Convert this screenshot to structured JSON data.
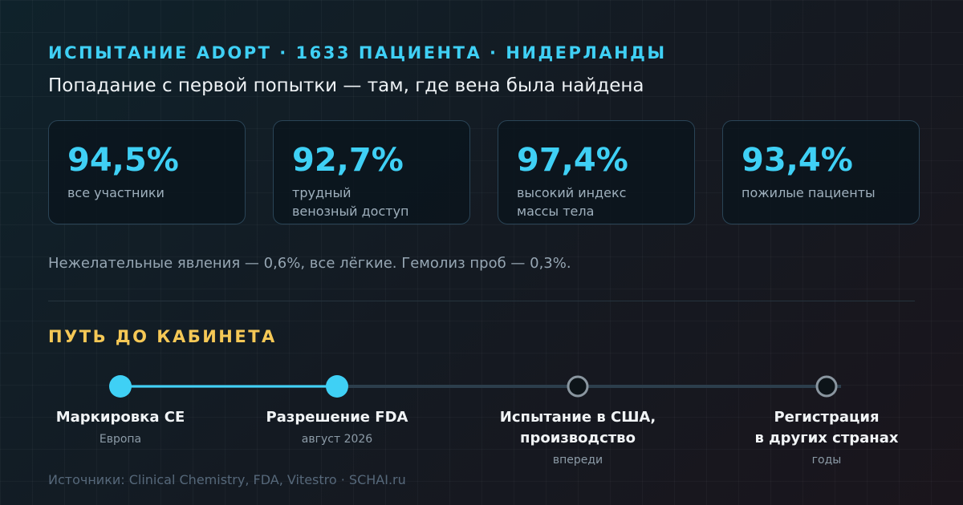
{
  "header": {
    "kicker": "ИСПЫТАНИЕ ADOPT · 1633 ПАЦИЕНТА · НИДЕРЛАНДЫ",
    "title": "Попадание с первой попытки — там, где вена была найдена"
  },
  "stats": [
    {
      "value": "94,5%",
      "label": [
        "все участники"
      ]
    },
    {
      "value": "92,7%",
      "label": [
        "трудный",
        "венозный доступ"
      ]
    },
    {
      "value": "97,4%",
      "label": [
        "высокий индекс",
        "массы тела"
      ]
    },
    {
      "value": "93,4%",
      "label": [
        "пожилые пациенты"
      ]
    }
  ],
  "note": "Нежелательные явления — 0,6%, все лёгкие. Гемолиз проб — 0,3%.",
  "roadmap": {
    "title": "ПУТЬ ДО КАБИНЕТА",
    "steps": [
      {
        "title": [
          "Маркировка CE"
        ],
        "subtitle": "Европа",
        "done": true
      },
      {
        "title": [
          "Разрешение FDA"
        ],
        "subtitle": "август 2026",
        "done": true
      },
      {
        "title": [
          "Испытание в США,",
          "производство"
        ],
        "subtitle": "впереди",
        "done": false
      },
      {
        "title": [
          "Регистрация",
          "в других странах"
        ],
        "subtitle": "годы",
        "done": false
      }
    ]
  },
  "source": "Источники: Clinical Chemistry, FDA, Vitestro · SCHAI.ru"
}
